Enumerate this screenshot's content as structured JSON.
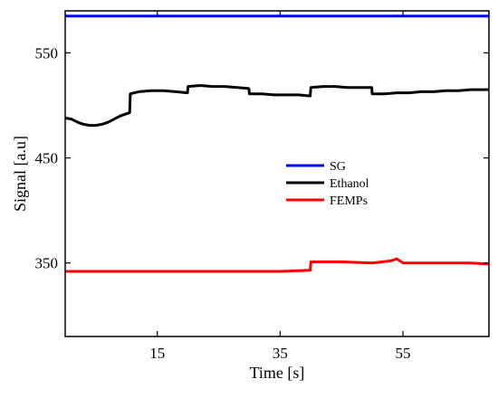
{
  "chart_data": {
    "type": "line",
    "xlabel": "Time [s]",
    "ylabel": "Signal [a.u]",
    "xlim": [
      0,
      69
    ],
    "ylim": [
      280,
      590
    ],
    "xticks": [
      15,
      35,
      55
    ],
    "yticks": [
      350,
      450,
      550
    ],
    "xtick_labels": [
      "15",
      "35",
      "55"
    ],
    "ytick_labels": [
      "350",
      "450",
      "550"
    ],
    "grid": false,
    "legend_position": "center-right",
    "series": [
      {
        "name": "SG",
        "color": "#0000ff",
        "x": [
          0,
          10,
          20,
          30,
          40,
          50,
          60,
          69
        ],
        "y": [
          585,
          585,
          585,
          585,
          585,
          585,
          585,
          585
        ]
      },
      {
        "name": "Ethanol",
        "color": "#000000",
        "x": [
          0,
          1,
          2,
          3,
          4,
          5,
          6,
          7,
          8,
          9,
          10.5,
          10.6,
          12,
          14,
          16,
          18,
          19.9,
          20,
          22,
          24,
          26,
          28,
          29.9,
          30,
          32,
          34,
          36,
          38,
          39.9,
          40,
          42,
          44,
          46,
          48,
          49.9,
          50,
          52,
          54,
          56,
          58,
          60,
          62,
          64,
          66,
          69
        ],
        "y": [
          488,
          487,
          484,
          482,
          481,
          481,
          482,
          484,
          487,
          490,
          493,
          511,
          513,
          514,
          514,
          513,
          512,
          518,
          519,
          518,
          518,
          517,
          516,
          511,
          511,
          510,
          510,
          510,
          509,
          517,
          518,
          518,
          517,
          517,
          517,
          511,
          511,
          512,
          512,
          513,
          513,
          514,
          514,
          515,
          515
        ]
      },
      {
        "name": "FEMPs",
        "color": "#ff0000",
        "x": [
          0,
          5,
          10,
          15,
          20,
          25,
          30,
          35,
          39.9,
          40,
          45,
          50,
          53,
          54,
          55,
          58,
          62,
          66,
          69
        ],
        "y": [
          342,
          342,
          342,
          342,
          342,
          342,
          342,
          342,
          343,
          351,
          351,
          350,
          352,
          354,
          350,
          350,
          350,
          350,
          349
        ]
      }
    ]
  }
}
